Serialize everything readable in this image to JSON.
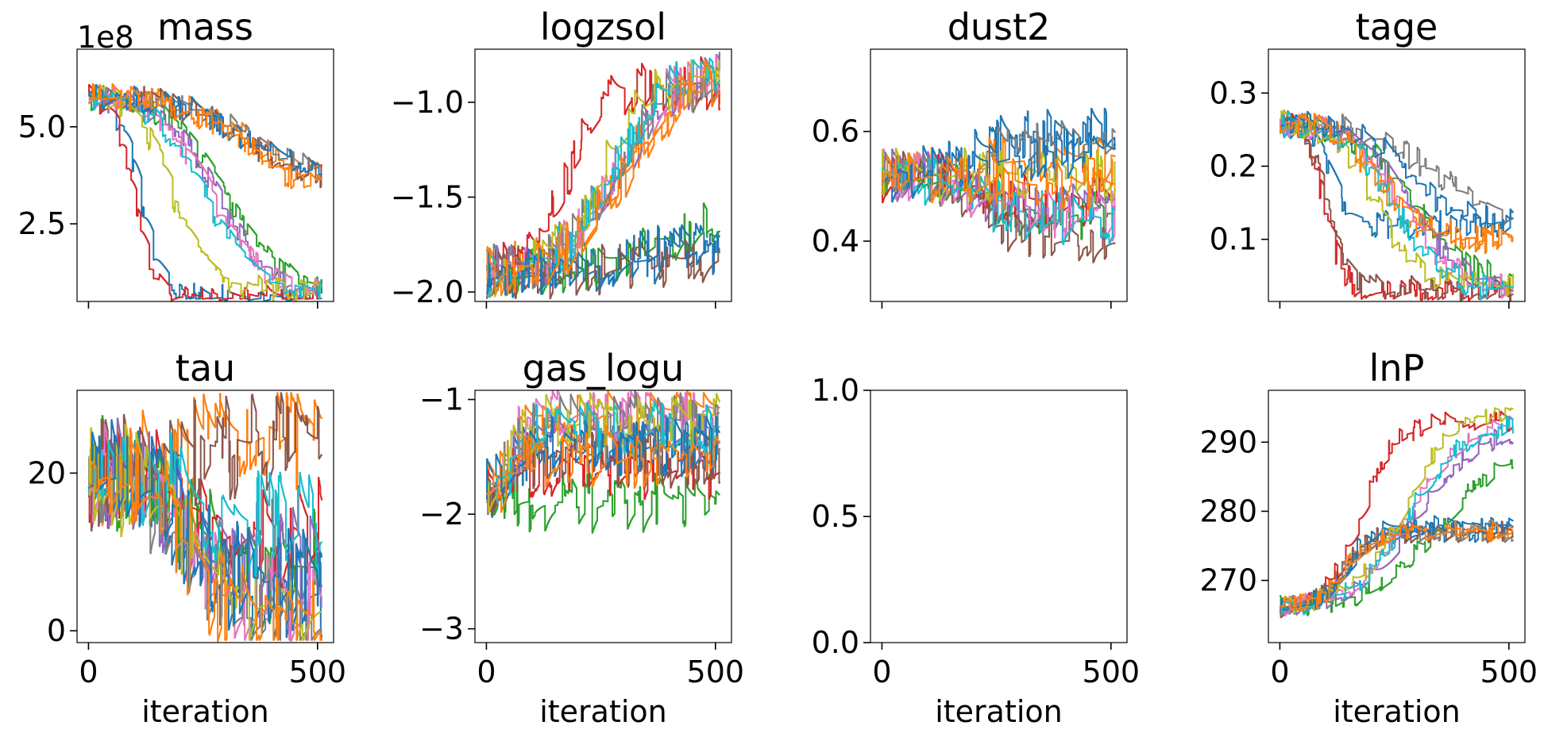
{
  "figure": {
    "iterations": 510,
    "walkers": 12,
    "walker_colors": [
      "#1f77b4",
      "#ff7f0e",
      "#2ca02c",
      "#d62728",
      "#9467bd",
      "#8c564b",
      "#e377c2",
      "#7f7f7f",
      "#bcbd22",
      "#17becf",
      "#1f77b4",
      "#ff7f0e"
    ]
  },
  "chart_data": [
    {
      "type": "line",
      "title": "mass",
      "xlabel": "",
      "xlim": [
        -25,
        535
      ],
      "ylim": [
        50000000.0,
        700000000.0
      ],
      "yticks": [
        250000000.0,
        500000000.0
      ],
      "ytick_labels": [
        "2.5",
        "5.0"
      ],
      "xticks": [
        0,
        500
      ],
      "xtick_labels": [],
      "offset_text": "1e8",
      "start": 580000000.0,
      "ends": [
        60000000.0,
        350000000.0,
        70000000.0,
        60000000.0,
        65000000.0,
        360000000.0,
        70000000.0,
        360000000.0,
        80000000.0,
        70000000.0,
        370000000.0,
        310000000.0
      ],
      "tmid": [
        160,
        500,
        420,
        140,
        400,
        480,
        380,
        500,
        260,
        360,
        480,
        500
      ],
      "noise": 35000000.0
    },
    {
      "type": "line",
      "title": "logzsol",
      "xlabel": "",
      "xlim": [
        -25,
        535
      ],
      "ylim": [
        -2.05,
        -0.72
      ],
      "yticks": [
        -2.0,
        -1.5,
        -1.0
      ],
      "ytick_labels": [
        "−2.0",
        "−1.5",
        "−1.0"
      ],
      "xticks": [
        0,
        500
      ],
      "xtick_labels": [],
      "start": -1.9,
      "ends": [
        -1.75,
        -0.85,
        -1.6,
        -0.9,
        -0.8,
        -1.8,
        -0.82,
        -0.88,
        -0.85,
        -0.8,
        -1.7,
        -0.85
      ],
      "tmid": [
        500,
        420,
        500,
        250,
        420,
        500,
        400,
        380,
        360,
        400,
        500,
        430
      ],
      "noise": 0.14
    },
    {
      "type": "line",
      "title": "dust2",
      "xlabel": "",
      "xlim": [
        -25,
        535
      ],
      "ylim": [
        0.29,
        0.75
      ],
      "yticks": [
        0.4,
        0.6
      ],
      "ytick_labels": [
        "0.4",
        "0.6"
      ],
      "xticks": [
        0,
        500
      ],
      "xtick_labels": [],
      "start": 0.52,
      "ends": [
        0.6,
        0.55,
        0.45,
        0.47,
        0.46,
        0.4,
        0.45,
        0.58,
        0.52,
        0.44,
        0.56,
        0.5
      ],
      "tmid": [
        300,
        300,
        300,
        300,
        300,
        300,
        300,
        300,
        300,
        300,
        300,
        300
      ],
      "noise": 0.05
    },
    {
      "type": "line",
      "title": "tage",
      "xlabel": "",
      "xlim": [
        -25,
        535
      ],
      "ylim": [
        0.015,
        0.36
      ],
      "yticks": [
        0.1,
        0.2,
        0.3
      ],
      "ytick_labels": [
        "0.1",
        "0.2",
        "0.3"
      ],
      "xticks": [
        0,
        500
      ],
      "xtick_labels": [],
      "start": 0.26,
      "ends": [
        0.12,
        0.1,
        0.035,
        0.028,
        0.03,
        0.03,
        0.03,
        0.12,
        0.035,
        0.03,
        0.12,
        0.1
      ],
      "tmid": [
        150,
        300,
        420,
        140,
        400,
        150,
        380,
        480,
        300,
        360,
        400,
        320
      ],
      "noise": 0.02
    },
    {
      "type": "line",
      "title": "tau",
      "xlabel": "iteration",
      "xlim": [
        -25,
        535
      ],
      "ylim": [
        -1.5,
        30.5
      ],
      "yticks": [
        0,
        20
      ],
      "ytick_labels": [
        "0",
        "20"
      ],
      "xticks": [
        0,
        500
      ],
      "xtick_labels": [
        "0",
        "500"
      ],
      "start": 20,
      "ends": [
        5,
        25,
        8,
        12,
        9,
        24,
        2,
        1,
        3,
        13,
        6,
        1
      ],
      "tmid": [
        300,
        300,
        300,
        300,
        300,
        300,
        300,
        300,
        300,
        300,
        300,
        300
      ],
      "noise": 7.5
    },
    {
      "type": "line",
      "title": "gas_logu",
      "xlabel": "iteration",
      "xlim": [
        -25,
        535
      ],
      "ylim": [
        -3.12,
        -0.92
      ],
      "yticks": [
        -3,
        -2,
        -1
      ],
      "ytick_labels": [
        "−3",
        "−2",
        "−1"
      ],
      "xticks": [
        0,
        500
      ],
      "xtick_labels": [
        "0",
        "500"
      ],
      "start": -1.8,
      "ends": [
        -1.4,
        -1.1,
        -1.9,
        -1.6,
        -1.3,
        -1.5,
        -1.1,
        -1.2,
        -1.2,
        -1.25,
        -1.4,
        -1.5
      ],
      "tmid": [
        80,
        80,
        80,
        80,
        80,
        80,
        80,
        80,
        80,
        80,
        80,
        80
      ],
      "noise": 0.28
    },
    {
      "type": "line",
      "title": "",
      "xlabel": "iteration",
      "xlim": [
        -25,
        535
      ],
      "ylim": [
        0.0,
        1.0
      ],
      "yticks": [
        0.0,
        0.5,
        1.0
      ],
      "ytick_labels": [
        "0.0",
        "0.5",
        "1.0"
      ],
      "xticks": [
        0,
        500
      ],
      "xtick_labels": [
        "0",
        "500"
      ],
      "empty": true
    },
    {
      "type": "line",
      "title": "lnP",
      "xlabel": "iteration",
      "xlim": [
        -25,
        535
      ],
      "ylim": [
        261,
        297.5
      ],
      "yticks": [
        270,
        280,
        290
      ],
      "ytick_labels": [
        "270",
        "280",
        "290"
      ],
      "xticks": [
        0,
        500
      ],
      "xtick_labels": [
        "0",
        "500"
      ],
      "start": 266,
      "ends": [
        277,
        277,
        290,
        293,
        292,
        277,
        293,
        277,
        295,
        293,
        278,
        277
      ],
      "tmid": [
        200,
        200,
        500,
        250,
        420,
        200,
        400,
        200,
        380,
        400,
        200,
        200
      ],
      "noise": 1.6
    }
  ]
}
